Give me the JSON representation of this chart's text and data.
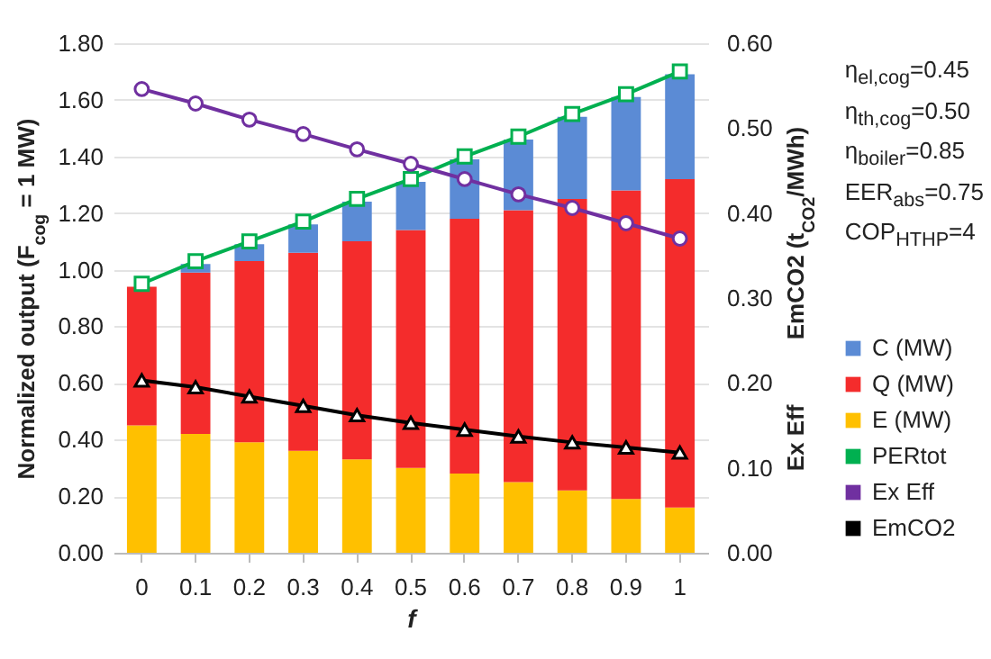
{
  "chart_data": {
    "type": "bar",
    "stacked": true,
    "categories": [
      "0",
      "0.1",
      "0.2",
      "0.3",
      "0.4",
      "0.5",
      "0.6",
      "0.7",
      "0.8",
      "0.9",
      "1"
    ],
    "series": [
      {
        "name": "E (MW)",
        "color": "#ffc000",
        "values": [
          0.45,
          0.42,
          0.39,
          0.36,
          0.33,
          0.3,
          0.28,
          0.25,
          0.22,
          0.19,
          0.16
        ]
      },
      {
        "name": "Q (MW)",
        "color": "#f42c2c",
        "values": [
          0.49,
          0.57,
          0.64,
          0.7,
          0.77,
          0.84,
          0.9,
          0.96,
          1.03,
          1.09,
          1.16
        ]
      },
      {
        "name": "C (MW)",
        "color": "#5b8bd5",
        "values": [
          0,
          0.03,
          0.06,
          0.1,
          0.14,
          0.17,
          0.21,
          0.25,
          0.29,
          0.33,
          0.37
        ]
      },
      {
        "name": "PERtot",
        "type": "line",
        "color": "#00b050",
        "marker": "square",
        "values": [
          0.95,
          1.03,
          1.1,
          1.17,
          1.25,
          1.32,
          1.4,
          1.47,
          1.55,
          1.62,
          1.7
        ]
      },
      {
        "name": "Ex Eff",
        "type": "line",
        "axis": "y2",
        "color": "#7030a0",
        "marker": "circle",
        "values": [
          0.546,
          0.529,
          0.51,
          0.493,
          0.475,
          0.458,
          0.44,
          0.422,
          0.406,
          0.388,
          0.37
        ]
      },
      {
        "name": "EmCO2",
        "type": "line",
        "axis": "y2",
        "color": "#000000",
        "marker": "triangle",
        "values": [
          0.203,
          0.195,
          0.184,
          0.173,
          0.162,
          0.153,
          0.145,
          0.137,
          0.13,
          0.124,
          0.118
        ]
      }
    ],
    "xlabel": "f",
    "ylabel": "Normalized output (F$_{cog}$ = 1 MW)",
    "y2label": "Ex Eff          EmCO2 (t$_{CO2}$/MWh)",
    "ylim": [
      0,
      1.8
    ],
    "yticks": [
      {
        "value": 0,
        "label": "0.00"
      },
      {
        "value": 0.2,
        "label": "0.20"
      },
      {
        "value": 0.4,
        "label": "0.40"
      },
      {
        "value": 0.6,
        "label": "0.60"
      },
      {
        "value": 0.8,
        "label": "0.80"
      },
      {
        "value": 1,
        "label": "1.00"
      },
      {
        "value": 1.2,
        "label": "1.20"
      },
      {
        "value": 1.4,
        "label": "1.40"
      },
      {
        "value": 1.6,
        "label": "1.60"
      },
      {
        "value": 1.8,
        "label": "1.80"
      }
    ],
    "y2lim": [
      0,
      0.6
    ],
    "y2ticks": [
      {
        "value": 0,
        "label": "0.00"
      },
      {
        "value": 0.1,
        "label": "0.10"
      },
      {
        "value": 0.2,
        "label": "0.20"
      },
      {
        "value": 0.3,
        "label": "0.30"
      },
      {
        "value": 0.4,
        "label": "0.40"
      },
      {
        "value": 0.5,
        "label": "0.50"
      },
      {
        "value": 0.6,
        "label": "0.60"
      }
    ],
    "grid": "y",
    "legend": "right",
    "annotations": [
      "η$_{el,cog}$=0.45",
      "η$_{th,cog}$=0.50",
      "η$_{boiler}$=0.85",
      "EER$_{abs}$=0.75",
      "COP$_{HTHP}$=4"
    ]
  }
}
